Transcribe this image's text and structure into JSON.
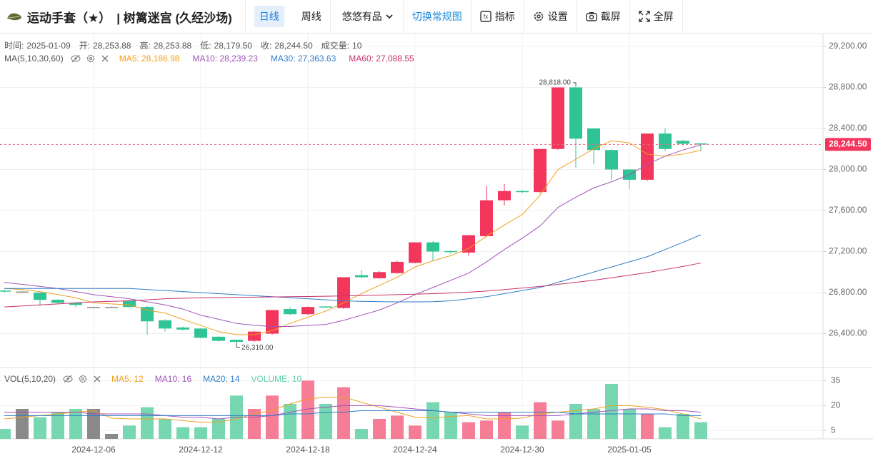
{
  "toolbar": {
    "title": "运动手套（★）",
    "subtitle": "| 树篱迷宫 (久经沙场)",
    "buttons": [
      "日线",
      "周线",
      "悠悠有品",
      "切换常规图",
      "指标",
      "设置",
      "截屏",
      "全屏"
    ]
  },
  "chart_data": {
    "type": "candlestick",
    "info": [
      {
        "label": "时间:",
        "value": "2025-01-09"
      },
      {
        "label": "开:",
        "value": "28,253.88"
      },
      {
        "label": "高:",
        "value": "28,253.88"
      },
      {
        "label": "低:",
        "value": "28,179.50"
      },
      {
        "label": "收:",
        "value": "28,244.50"
      },
      {
        "label": "成交量:",
        "value": "10"
      }
    ],
    "ma_legend": "MA(5,10,30,60)",
    "categories": [
      null,
      null,
      null,
      null,
      null,
      "2024-12-06",
      null,
      null,
      null,
      null,
      null,
      "2024-12-12",
      null,
      null,
      null,
      null,
      null,
      "2024-12-18",
      null,
      null,
      null,
      null,
      null,
      "2024-12-24",
      null,
      null,
      null,
      null,
      null,
      "2024-12-30",
      null,
      null,
      null,
      null,
      null,
      "2025-01-05",
      null,
      null,
      null,
      null
    ],
    "open": [
      26820,
      26810,
      26800,
      26730,
      26700,
      26660,
      26660,
      26720,
      26660,
      26530,
      26460,
      26450,
      26370,
      26340,
      26330,
      26400,
      26640,
      26590,
      26665,
      26650,
      26970,
      26940,
      26990,
      27090,
      27290,
      27205,
      27190,
      27350,
      27700,
      27790,
      27780,
      28200,
      28800,
      28400,
      28190,
      28000,
      27900,
      28350,
      28280,
      28253.88
    ],
    "high": [
      26830,
      26815,
      26800,
      26735,
      26705,
      26665,
      26665,
      26730,
      26670,
      26540,
      26470,
      26455,
      26375,
      26345,
      26430,
      26630,
      26660,
      26665,
      26670,
      26950,
      27020,
      27010,
      27110,
      27290,
      27300,
      27210,
      27360,
      27840,
      27860,
      27800,
      28200,
      28800,
      28818,
      28400,
      28200,
      28000,
      28350,
      28400,
      28290,
      28253.88
    ],
    "low": [
      26800,
      26800,
      26670,
      26695,
      26660,
      26655,
      26655,
      26655,
      26390,
      26420,
      26430,
      26355,
      26325,
      26310,
      26320,
      26390,
      26580,
      26580,
      26655,
      26640,
      26940,
      26935,
      26985,
      27085,
      27110,
      27180,
      27160,
      27340,
      27650,
      27770,
      27770,
      28190,
      28020,
      28050,
      27900,
      27810,
      27890,
      28180,
      28230,
      28179.5
    ],
    "close": [
      26810,
      26810,
      26730,
      26700,
      26680,
      26660,
      26660,
      26660,
      26520,
      26450,
      26440,
      26360,
      26330,
      26320,
      26420,
      26630,
      26590,
      26660,
      26660,
      26950,
      26950,
      27000,
      27100,
      27290,
      27200,
      27200,
      27360,
      27700,
      27790,
      27780,
      28200,
      28800,
      28300,
      28190,
      28000,
      27900,
      28350,
      28200,
      28250,
      28244.5
    ],
    "up_color": "#f2365c",
    "down_color": "#2ec495",
    "flat_color": "#8a8a8a",
    "ma": [
      {
        "name": "MA5: 28,186.98",
        "color": "#f0a020",
        "values": [
          26840,
          26830,
          26810,
          26780,
          26750,
          26700,
          26690,
          26680,
          26630,
          26600,
          26540,
          26480,
          26420,
          26390,
          26390,
          26430,
          26500,
          26560,
          26620,
          26700,
          26790,
          26870,
          26950,
          27050,
          27110,
          27160,
          27230,
          27350,
          27460,
          27560,
          27750,
          28000,
          28100,
          28200,
          28280,
          28260,
          28150,
          28130,
          28150,
          28186.98
        ]
      },
      {
        "name": "MA10: 28,239.23",
        "color": "#a055b8",
        "values": [
          26900,
          26880,
          26860,
          26840,
          26810,
          26780,
          26760,
          26740,
          26710,
          26680,
          26640,
          26580,
          26540,
          26500,
          26480,
          26470,
          26470,
          26480,
          26490,
          26530,
          26580,
          26630,
          26700,
          26780,
          26850,
          26920,
          26990,
          27100,
          27220,
          27330,
          27450,
          27630,
          27730,
          27820,
          27880,
          27950,
          28050,
          28130,
          28190,
          28239.23
        ]
      },
      {
        "name": "MA30: 27,363.63",
        "color": "#2f7fc8",
        "values": [
          26840,
          26840,
          26840,
          26840,
          26840,
          26840,
          26840,
          26840,
          26830,
          26820,
          26810,
          26800,
          26790,
          26780,
          26770,
          26760,
          26750,
          26740,
          26730,
          26720,
          26715,
          26712,
          26710,
          26710,
          26712,
          26720,
          26740,
          26760,
          26790,
          26820,
          26850,
          26900,
          26950,
          27000,
          27050,
          27100,
          27150,
          27220,
          27290,
          27363.63
        ]
      },
      {
        "name": "MA60: 27,088.55",
        "color": "#c8336d",
        "values": [
          26660,
          26670,
          26680,
          26690,
          26700,
          26710,
          26715,
          26720,
          26730,
          26740,
          26745,
          26750,
          26752,
          26754,
          26756,
          26758,
          26760,
          26762,
          26765,
          26768,
          26772,
          26776,
          26780,
          26785,
          26790,
          26796,
          26805,
          26815,
          26830,
          26845,
          26860,
          26880,
          26900,
          26920,
          26945,
          26970,
          26995,
          27025,
          27055,
          27088.55
        ]
      }
    ],
    "ylim": [
      26070,
      29325
    ],
    "yticks": [
      {
        "value": 26400,
        "label": "26,400.00"
      },
      {
        "value": 26800,
        "label": "26,800.00"
      },
      {
        "value": 27200,
        "label": "27,200.00"
      },
      {
        "value": 27600,
        "label": "27,600.00"
      },
      {
        "value": 28000,
        "label": "28,000.00"
      },
      {
        "value": 28400,
        "label": "28,400.00"
      },
      {
        "value": 28800,
        "label": "28,800.00"
      },
      {
        "value": 29200,
        "label": "29,200.00"
      }
    ],
    "grid": true,
    "last_price_label": "28,244.50",
    "max_label": "28,818.00",
    "min_label": "26,310.00",
    "volume": {
      "legend": "VOL(5,10,20)",
      "current_label": "VOLUME: 10",
      "current_color": "#5fcfa8",
      "values": [
        6,
        18,
        13,
        16,
        18,
        18,
        3,
        8,
        19,
        12,
        7,
        7,
        12,
        26,
        18,
        26,
        21,
        35,
        21,
        31,
        6,
        12,
        14,
        8,
        22,
        16,
        10,
        11,
        16,
        8,
        22,
        11,
        21,
        18,
        33,
        18,
        15,
        7,
        15,
        10
      ],
      "up_color": "#f67d96",
      "down_color": "#76d7b0",
      "flat_color": "#8a8a8a",
      "ylim": [
        0,
        42
      ],
      "yticks": [
        5,
        20,
        35
      ],
      "ma": [
        {
          "name": "MA5: 12",
          "color": "#f0a020",
          "values": [
            12,
            13,
            14,
            15,
            16,
            17,
            12.5,
            12,
            12,
            12,
            11,
            10,
            10,
            12,
            15,
            17,
            21,
            24,
            25,
            25,
            22,
            19,
            16,
            13,
            12.5,
            13.5,
            14,
            12,
            12,
            12.5,
            15,
            16,
            17,
            18,
            20,
            20,
            19,
            17.5,
            15,
            12
          ]
        },
        {
          "name": "MA10: 16",
          "color": "#a055b8",
          "values": [
            16,
            16,
            16,
            16,
            16,
            15,
            15,
            15,
            15,
            14,
            13,
            13,
            12,
            13,
            13,
            14,
            16,
            18,
            19,
            20,
            20,
            20,
            19,
            18,
            17,
            16,
            15,
            14,
            14,
            14,
            14,
            14,
            15,
            16,
            17,
            18,
            18,
            17,
            17,
            16
          ]
        },
        {
          "name": "MA20: 14",
          "color": "#2f7fc8",
          "values": [
            14,
            14,
            14,
            14,
            14,
            14,
            14,
            14,
            14,
            14,
            14,
            14,
            14,
            14,
            14,
            14,
            15,
            15,
            16,
            16,
            17,
            17,
            17,
            17,
            17,
            16,
            16,
            16,
            16,
            16,
            16,
            16,
            15,
            15,
            15,
            15,
            15,
            15,
            14,
            14
          ]
        }
      ]
    }
  }
}
